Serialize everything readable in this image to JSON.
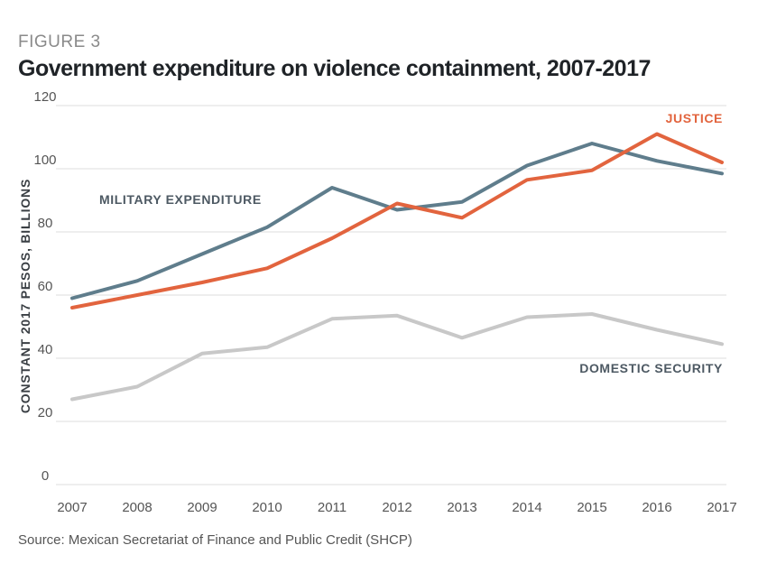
{
  "figure_label": "FIGURE 3",
  "source": "Source: Mexican Secretariat of Finance and Public Credit (SHCP)",
  "chart_data": {
    "type": "line",
    "title": "Government expenditure on violence containment, 2007-2017",
    "xlabel": "",
    "ylabel": "CONSTANT 2017 PESOS, BILLIONS",
    "x": [
      "2007",
      "2008",
      "2009",
      "2010",
      "2011",
      "2012",
      "2013",
      "2014",
      "2015",
      "2016",
      "2017"
    ],
    "ylim": [
      0,
      120
    ],
    "yticks": [
      "0",
      "20",
      "40",
      "60",
      "80",
      "100",
      "120"
    ],
    "grid": true,
    "series": [
      {
        "name": "MILITARY EXPENDITURE",
        "color": "#5f7d8c",
        "values": [
          59,
          64.5,
          73,
          81.5,
          94,
          87,
          89.5,
          101,
          108,
          102.5,
          98.5
        ]
      },
      {
        "name": "JUSTICE",
        "color": "#e2643e",
        "values": [
          56,
          60,
          64,
          68.5,
          78,
          89,
          84.5,
          96.5,
          99.5,
          111,
          102
        ]
      },
      {
        "name": "DOMESTIC SECURITY",
        "color": "#c8c8c8",
        "values": [
          27,
          31,
          41.5,
          43.5,
          52.5,
          53.5,
          46.5,
          53,
          54,
          49,
          44.5
        ]
      }
    ]
  }
}
